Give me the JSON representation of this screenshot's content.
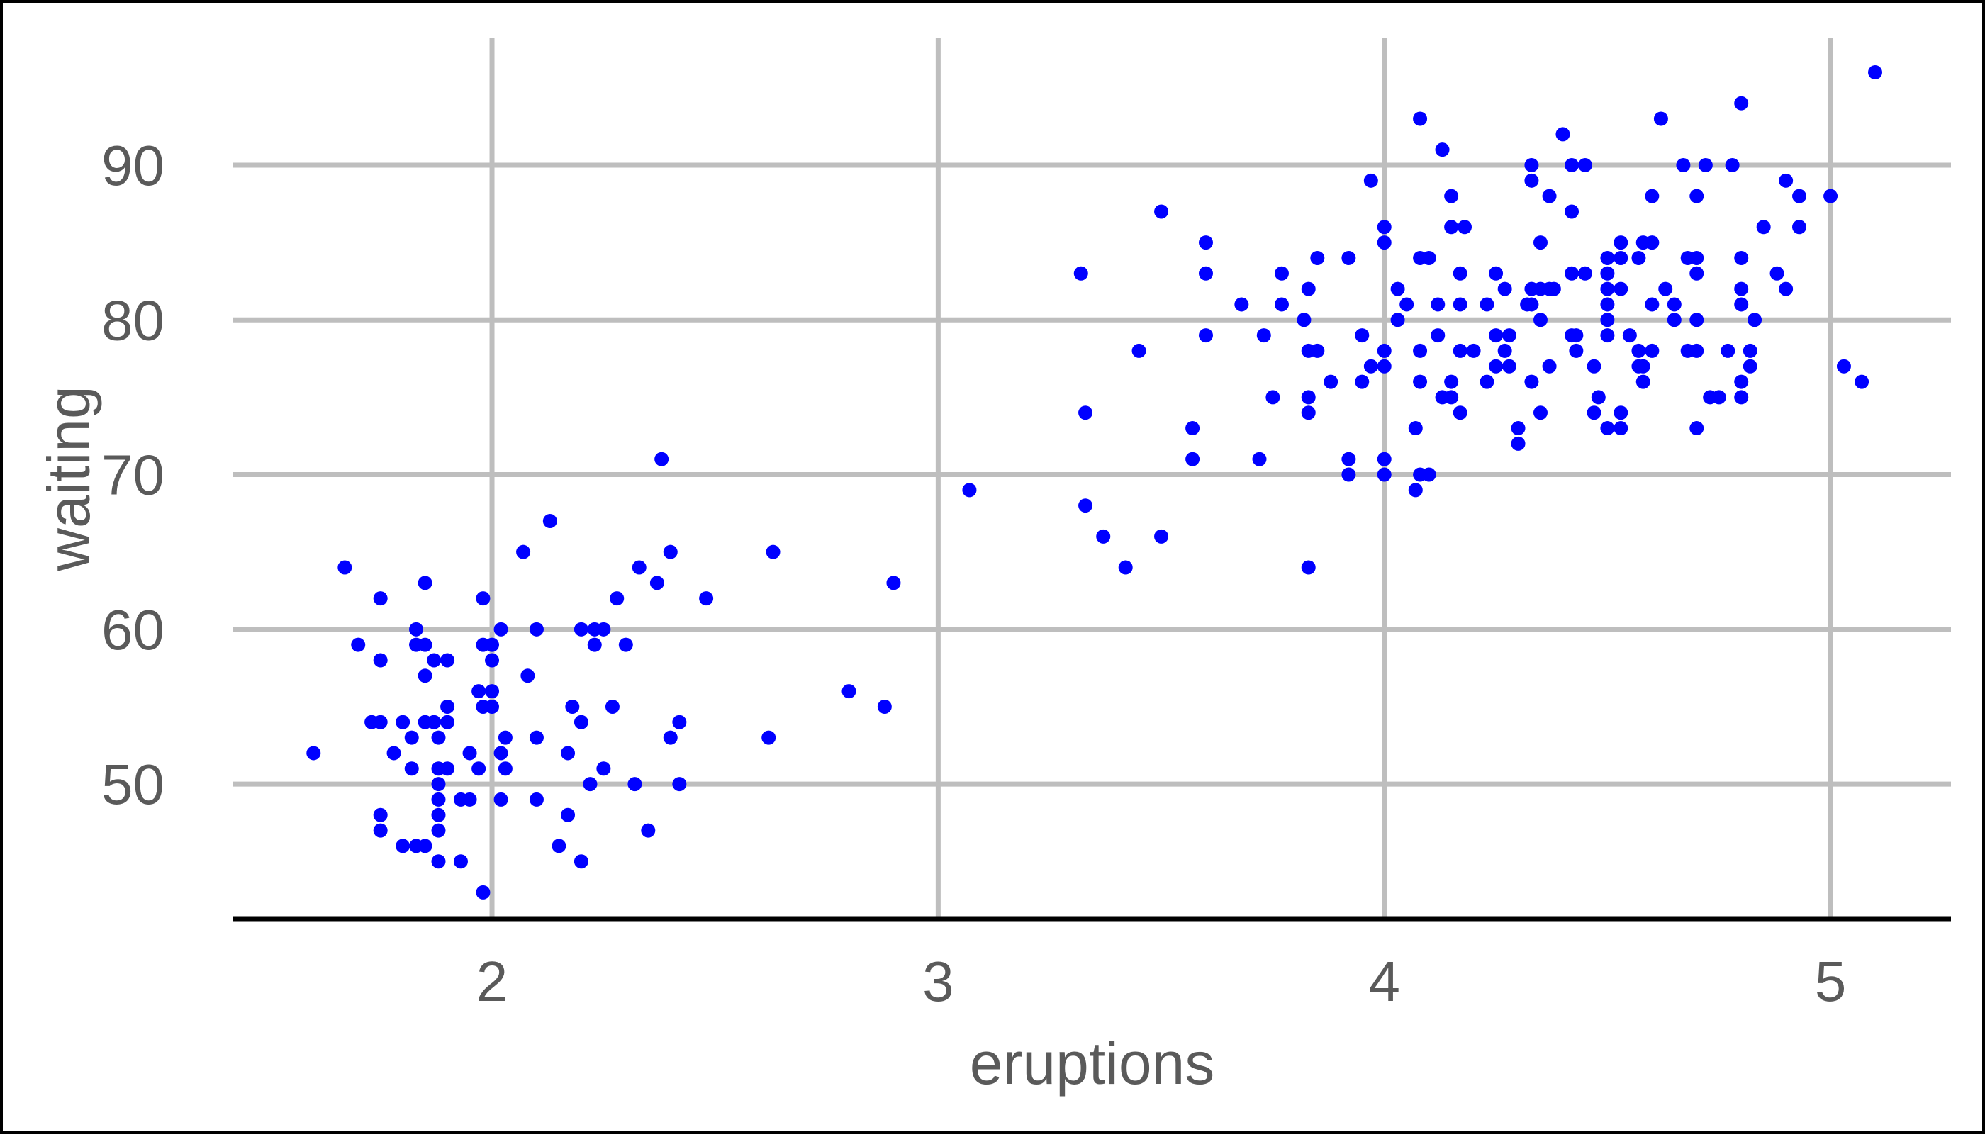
{
  "chart_data": {
    "type": "scatter",
    "title": "",
    "xlabel": "eruptions",
    "ylabel": "waiting",
    "xlim": [
      1.42,
      5.27
    ],
    "ylim": [
      41.3,
      98.2
    ],
    "xticks": [
      2,
      3,
      4,
      5
    ],
    "yticks": [
      50,
      60,
      70,
      80,
      90
    ],
    "grid": true,
    "legend": "none",
    "point_color": "#0000ff",
    "grid_color": "#bebebe",
    "axis_color": "#000000",
    "series": [
      {
        "values": [
          [
            1.6,
            52
          ],
          [
            1.67,
            64
          ],
          [
            1.7,
            59
          ],
          [
            1.73,
            54
          ],
          [
            1.75,
            54
          ],
          [
            1.75,
            62
          ],
          [
            1.75,
            58
          ],
          [
            1.75,
            48
          ],
          [
            1.75,
            47
          ],
          [
            1.78,
            52
          ],
          [
            1.8,
            46
          ],
          [
            1.8,
            54
          ],
          [
            1.82,
            53
          ],
          [
            1.82,
            51
          ],
          [
            1.83,
            60
          ],
          [
            1.83,
            59
          ],
          [
            1.83,
            46
          ],
          [
            1.85,
            63
          ],
          [
            1.85,
            59
          ],
          [
            1.85,
            57
          ],
          [
            1.85,
            54
          ],
          [
            1.85,
            46
          ],
          [
            1.87,
            58
          ],
          [
            1.87,
            54
          ],
          [
            1.88,
            53
          ],
          [
            1.88,
            51
          ],
          [
            1.88,
            50
          ],
          [
            1.88,
            49
          ],
          [
            1.88,
            48
          ],
          [
            1.88,
            47
          ],
          [
            1.88,
            45
          ],
          [
            1.9,
            58
          ],
          [
            1.9,
            55
          ],
          [
            1.9,
            54
          ],
          [
            1.9,
            51
          ],
          [
            1.93,
            45
          ],
          [
            1.93,
            49
          ],
          [
            1.95,
            52
          ],
          [
            1.95,
            49
          ],
          [
            1.97,
            51
          ],
          [
            1.97,
            56
          ],
          [
            1.98,
            55
          ],
          [
            1.98,
            62
          ],
          [
            1.98,
            59
          ],
          [
            1.98,
            43
          ],
          [
            2.0,
            59
          ],
          [
            2.0,
            58
          ],
          [
            2.0,
            56
          ],
          [
            2.0,
            55
          ],
          [
            2.02,
            60
          ],
          [
            2.02,
            52
          ],
          [
            2.02,
            49
          ],
          [
            2.03,
            53
          ],
          [
            2.03,
            51
          ],
          [
            2.07,
            65
          ],
          [
            2.08,
            57
          ],
          [
            2.1,
            60
          ],
          [
            2.1,
            53
          ],
          [
            2.1,
            49
          ],
          [
            2.13,
            67
          ],
          [
            2.15,
            46
          ],
          [
            2.17,
            52
          ],
          [
            2.17,
            48
          ],
          [
            2.18,
            55
          ],
          [
            2.2,
            60
          ],
          [
            2.2,
            54
          ],
          [
            2.2,
            45
          ],
          [
            2.22,
            50
          ],
          [
            2.23,
            60
          ],
          [
            2.23,
            59
          ],
          [
            2.25,
            60
          ],
          [
            2.25,
            51
          ],
          [
            2.27,
            55
          ],
          [
            2.28,
            62
          ],
          [
            2.3,
            59
          ],
          [
            2.32,
            50
          ],
          [
            2.33,
            64
          ],
          [
            2.35,
            47
          ],
          [
            2.37,
            63
          ],
          [
            2.38,
            71
          ],
          [
            2.4,
            65
          ],
          [
            2.4,
            53
          ],
          [
            2.42,
            54
          ],
          [
            2.42,
            50
          ],
          [
            2.48,
            62
          ],
          [
            2.62,
            53
          ],
          [
            2.63,
            65
          ],
          [
            2.8,
            56
          ],
          [
            2.88,
            55
          ],
          [
            2.9,
            63
          ],
          [
            3.07,
            69
          ],
          [
            3.32,
            83
          ],
          [
            3.33,
            74
          ],
          [
            3.33,
            68
          ],
          [
            3.37,
            66
          ],
          [
            3.42,
            64
          ],
          [
            3.45,
            78
          ],
          [
            3.5,
            87
          ],
          [
            3.5,
            66
          ],
          [
            3.57,
            73
          ],
          [
            3.57,
            71
          ],
          [
            3.6,
            85
          ],
          [
            3.6,
            83
          ],
          [
            3.6,
            79
          ],
          [
            3.68,
            81
          ],
          [
            3.72,
            71
          ],
          [
            3.73,
            79
          ],
          [
            3.75,
            75
          ],
          [
            3.77,
            83
          ],
          [
            3.77,
            81
          ],
          [
            3.82,
            80
          ],
          [
            3.83,
            82
          ],
          [
            3.83,
            78
          ],
          [
            3.83,
            75
          ],
          [
            3.83,
            74
          ],
          [
            3.83,
            64
          ],
          [
            3.85,
            84
          ],
          [
            3.85,
            78
          ],
          [
            3.88,
            76
          ],
          [
            3.92,
            84
          ],
          [
            3.92,
            71
          ],
          [
            3.92,
            70
          ],
          [
            3.95,
            79
          ],
          [
            3.95,
            76
          ],
          [
            3.97,
            89
          ],
          [
            3.97,
            77
          ],
          [
            4.0,
            86
          ],
          [
            4.0,
            85
          ],
          [
            4.0,
            78
          ],
          [
            4.0,
            77
          ],
          [
            4.0,
            71
          ],
          [
            4.0,
            70
          ],
          [
            4.03,
            82
          ],
          [
            4.03,
            80
          ],
          [
            4.05,
            81
          ],
          [
            4.07,
            73
          ],
          [
            4.07,
            69
          ],
          [
            4.08,
            93
          ],
          [
            4.08,
            84
          ],
          [
            4.08,
            78
          ],
          [
            4.08,
            76
          ],
          [
            4.08,
            70
          ],
          [
            4.1,
            84
          ],
          [
            4.1,
            70
          ],
          [
            4.12,
            81
          ],
          [
            4.12,
            79
          ],
          [
            4.13,
            91
          ],
          [
            4.13,
            75
          ],
          [
            4.15,
            88
          ],
          [
            4.15,
            86
          ],
          [
            4.15,
            76
          ],
          [
            4.15,
            75
          ],
          [
            4.17,
            83
          ],
          [
            4.17,
            81
          ],
          [
            4.17,
            78
          ],
          [
            4.17,
            74
          ],
          [
            4.18,
            86
          ],
          [
            4.2,
            78
          ],
          [
            4.23,
            81
          ],
          [
            4.23,
            76
          ],
          [
            4.25,
            83
          ],
          [
            4.25,
            79
          ],
          [
            4.25,
            77
          ],
          [
            4.27,
            82
          ],
          [
            4.27,
            78
          ],
          [
            4.28,
            79
          ],
          [
            4.28,
            77
          ],
          [
            4.3,
            73
          ],
          [
            4.3,
            72
          ],
          [
            4.32,
            81
          ],
          [
            4.33,
            90
          ],
          [
            4.33,
            89
          ],
          [
            4.33,
            82
          ],
          [
            4.33,
            81
          ],
          [
            4.33,
            76
          ],
          [
            4.35,
            85
          ],
          [
            4.35,
            82
          ],
          [
            4.35,
            80
          ],
          [
            4.35,
            74
          ],
          [
            4.37,
            88
          ],
          [
            4.37,
            82
          ],
          [
            4.37,
            77
          ],
          [
            4.38,
            82
          ],
          [
            4.4,
            92
          ],
          [
            4.42,
            90
          ],
          [
            4.42,
            87
          ],
          [
            4.42,
            83
          ],
          [
            4.42,
            79
          ],
          [
            4.43,
            79
          ],
          [
            4.43,
            78
          ],
          [
            4.45,
            90
          ],
          [
            4.45,
            83
          ],
          [
            4.47,
            77
          ],
          [
            4.47,
            74
          ],
          [
            4.48,
            75
          ],
          [
            4.5,
            84
          ],
          [
            4.5,
            83
          ],
          [
            4.5,
            82
          ],
          [
            4.5,
            81
          ],
          [
            4.5,
            80
          ],
          [
            4.5,
            79
          ],
          [
            4.5,
            73
          ],
          [
            4.53,
            85
          ],
          [
            4.53,
            84
          ],
          [
            4.53,
            82
          ],
          [
            4.53,
            74
          ],
          [
            4.53,
            73
          ],
          [
            4.55,
            79
          ],
          [
            4.57,
            84
          ],
          [
            4.57,
            78
          ],
          [
            4.57,
            77
          ],
          [
            4.58,
            85
          ],
          [
            4.58,
            77
          ],
          [
            4.58,
            76
          ],
          [
            4.6,
            88
          ],
          [
            4.6,
            85
          ],
          [
            4.6,
            81
          ],
          [
            4.6,
            78
          ],
          [
            4.62,
            93
          ],
          [
            4.63,
            82
          ],
          [
            4.65,
            81
          ],
          [
            4.65,
            80
          ],
          [
            4.67,
            90
          ],
          [
            4.68,
            84
          ],
          [
            4.68,
            78
          ],
          [
            4.7,
            88
          ],
          [
            4.7,
            84
          ],
          [
            4.7,
            83
          ],
          [
            4.7,
            80
          ],
          [
            4.7,
            78
          ],
          [
            4.7,
            73
          ],
          [
            4.72,
            90
          ],
          [
            4.73,
            75
          ],
          [
            4.75,
            75
          ],
          [
            4.77,
            78
          ],
          [
            4.78,
            90
          ],
          [
            4.8,
            94
          ],
          [
            4.8,
            84
          ],
          [
            4.8,
            82
          ],
          [
            4.8,
            81
          ],
          [
            4.8,
            76
          ],
          [
            4.8,
            75
          ],
          [
            4.82,
            78
          ],
          [
            4.82,
            77
          ],
          [
            4.83,
            80
          ],
          [
            4.85,
            86
          ],
          [
            4.88,
            83
          ],
          [
            4.9,
            89
          ],
          [
            4.9,
            82
          ],
          [
            4.93,
            88
          ],
          [
            4.93,
            86
          ],
          [
            5.0,
            88
          ],
          [
            5.03,
            77
          ],
          [
            5.07,
            76
          ],
          [
            5.1,
            96
          ]
        ]
      }
    ]
  }
}
